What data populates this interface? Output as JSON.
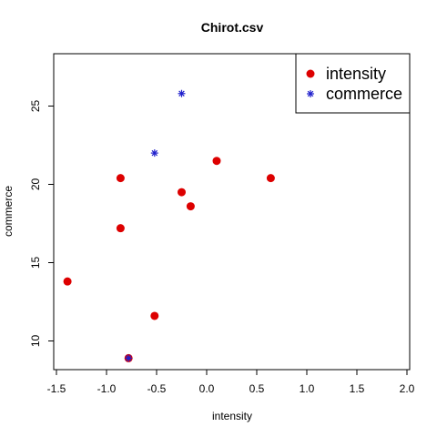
{
  "chart_data": {
    "type": "scatter",
    "title": "Chirot.csv",
    "xlabel": "intensity",
    "ylabel": "commerce",
    "xlim": [
      -1.5,
      2.0
    ],
    "ylim": [
      8.5,
      28.0
    ],
    "xticks": [
      -1.5,
      -1.0,
      -0.5,
      0.0,
      0.5,
      1.0,
      1.5,
      2.0
    ],
    "xtick_labels": [
      "-1.5",
      "-1.0",
      "-0.5",
      "0.0",
      "0.5",
      "1.0",
      "1.5",
      "2.0"
    ],
    "yticks": [
      10,
      15,
      20,
      25
    ],
    "ytick_labels": [
      "10",
      "15",
      "20",
      "25"
    ],
    "grid": false,
    "legend_position": "top-right",
    "series": [
      {
        "name": "intensity",
        "marker": "filled-circle",
        "color": "#dd0000",
        "points": [
          {
            "x": -1.39,
            "y": 13.8
          },
          {
            "x": -0.86,
            "y": 20.4
          },
          {
            "x": -0.86,
            "y": 17.2
          },
          {
            "x": -0.78,
            "y": 8.9
          },
          {
            "x": -0.52,
            "y": 11.6
          },
          {
            "x": -0.25,
            "y": 19.5
          },
          {
            "x": -0.16,
            "y": 18.6
          },
          {
            "x": 0.1,
            "y": 21.5
          },
          {
            "x": 0.64,
            "y": 20.4
          }
        ]
      },
      {
        "name": "commerce",
        "marker": "asterisk",
        "color": "#2020cc",
        "points": [
          {
            "x": -0.52,
            "y": 22.0
          },
          {
            "x": -0.25,
            "y": 25.8
          },
          {
            "x": -0.78,
            "y": 8.9
          }
        ]
      }
    ]
  }
}
